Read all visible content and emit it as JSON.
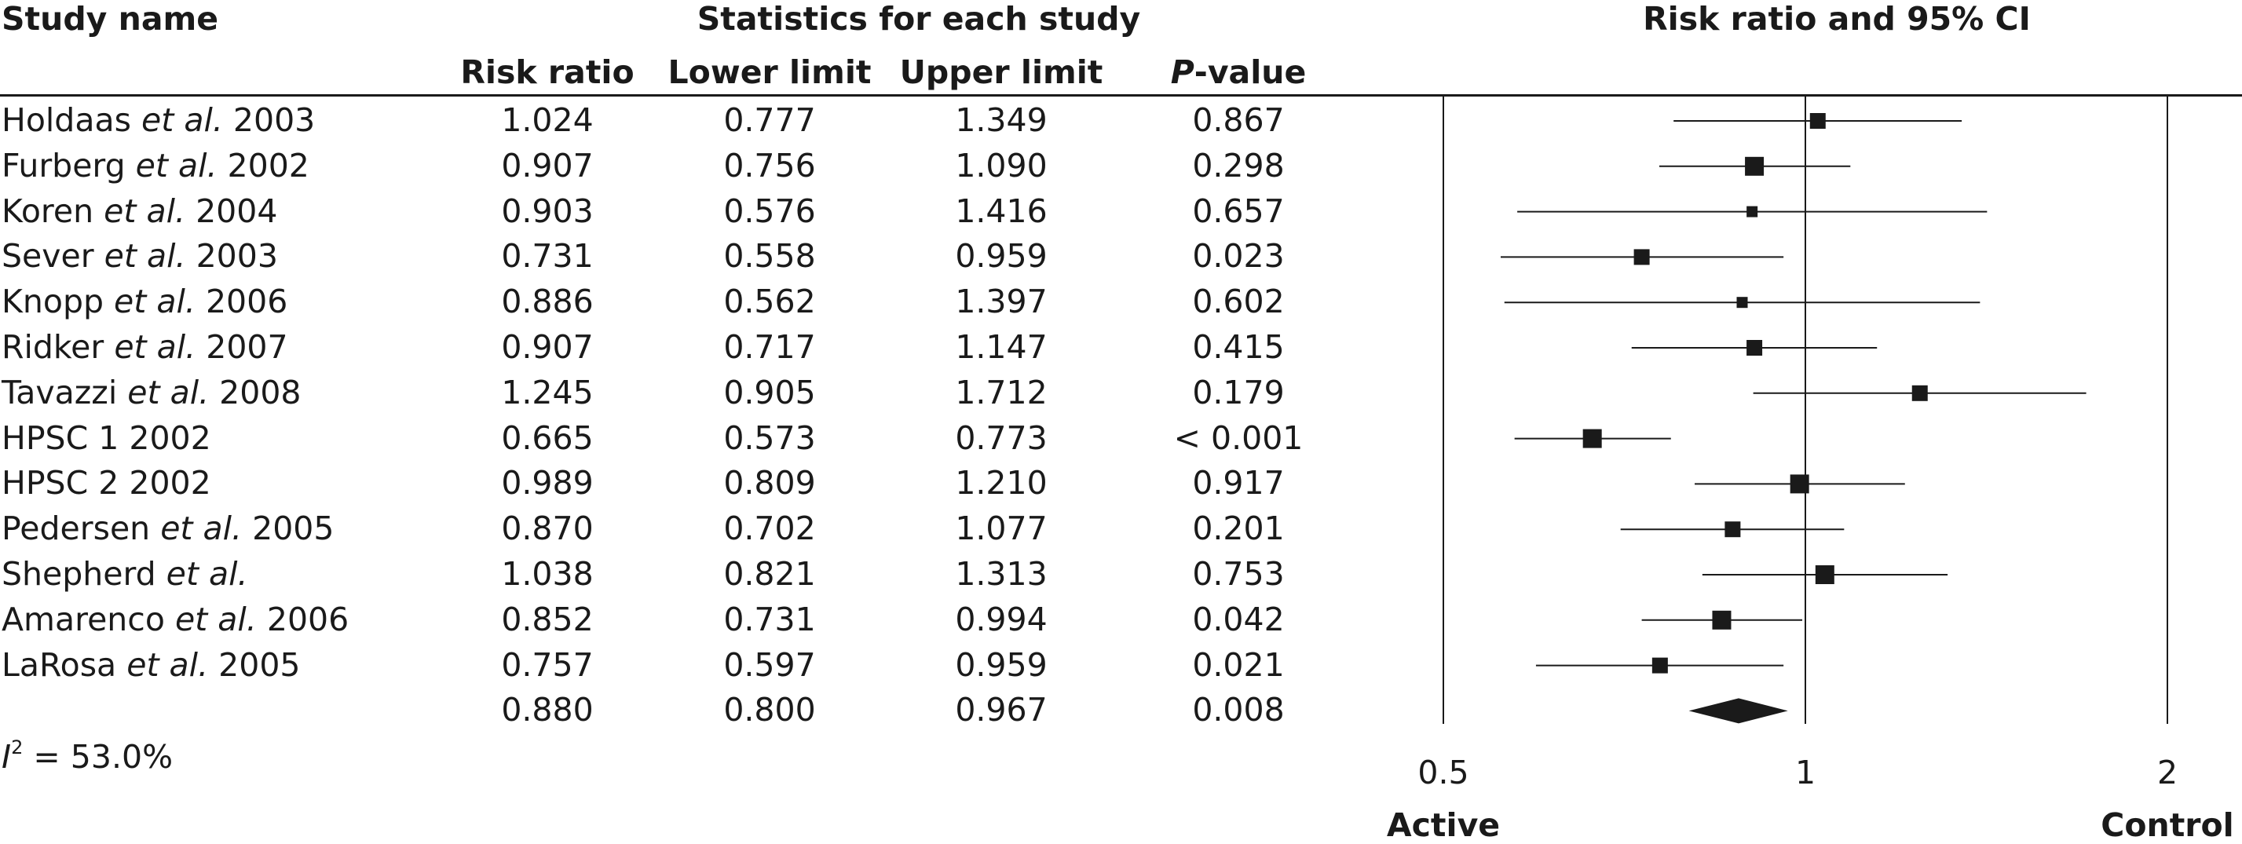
{
  "headers": {
    "study_name": "Study name",
    "statistics": "Statistics for each study",
    "risk_ratio": "Risk ratio",
    "lower_limit": "Lower limit",
    "upper_limit": "Upper limit",
    "p_value_italic": "P",
    "p_value_rest": "-value",
    "plot_title": "Risk ratio and 95% CI"
  },
  "heterogeneity": {
    "label_italic": "I",
    "label_sup": "2",
    "text": " = 53.0%"
  },
  "axis": {
    "active": "Active",
    "control": "Control"
  },
  "chart_data": {
    "type": "forest",
    "title": "Risk ratio and 95% CI",
    "x_scale": "log",
    "xlim": [
      0.5,
      2
    ],
    "ticks": [
      "0.5",
      "1",
      "2"
    ],
    "reference_line": 1,
    "xlabel_left": "Active",
    "xlabel_right": "Control",
    "studies": [
      {
        "name": "Holdaas",
        "etal": " et al.",
        "year": " 2003",
        "rr": "1.024",
        "lower": "0.777",
        "upper": "1.349",
        "p": "0.867",
        "weight": "medium"
      },
      {
        "name": "Furberg",
        "etal": " et al.",
        "year": " 2002",
        "rr": "0.907",
        "lower": "0.756",
        "upper": "1.090",
        "p": "0.298",
        "weight": "large"
      },
      {
        "name": "Koren",
        "etal": " et al.",
        "year": " 2004",
        "rr": "0.903",
        "lower": "0.576",
        "upper": "1.416",
        "p": "0.657",
        "weight": "small"
      },
      {
        "name": "Sever",
        "etal": " et al.",
        "year": " 2003",
        "rr": "0.731",
        "lower": "0.558",
        "upper": "0.959",
        "p": "0.023",
        "weight": "medium"
      },
      {
        "name": "Knopp",
        "etal": " et al.",
        "year": " 2006",
        "rr": "0.886",
        "lower": "0.562",
        "upper": "1.397",
        "p": "0.602",
        "weight": "small"
      },
      {
        "name": "Ridker",
        "etal": " et al.",
        "year": " 2007",
        "rr": "0.907",
        "lower": "0.717",
        "upper": "1.147",
        "p": "0.415",
        "weight": "medium"
      },
      {
        "name": "Tavazzi",
        "etal": " et al.",
        "year": " 2008",
        "rr": "1.245",
        "lower": "0.905",
        "upper": "1.712",
        "p": "0.179",
        "weight": "medium"
      },
      {
        "name": "HPSC 1 2002",
        "etal": "",
        "year": "",
        "rr": "0.665",
        "lower": "0.573",
        "upper": "0.773",
        "p": "< 0.001",
        "weight": "large"
      },
      {
        "name": "HPSC 2 2002",
        "etal": "",
        "year": "",
        "rr": "0.989",
        "lower": "0.809",
        "upper": "1.210",
        "p": "0.917",
        "weight": "large"
      },
      {
        "name": "Pedersen",
        "etal": " et al.",
        "year": " 2005",
        "rr": "0.870",
        "lower": "0.702",
        "upper": "1.077",
        "p": "0.201",
        "weight": "medium"
      },
      {
        "name": "Shepherd",
        "etal": " et al.",
        "year": "",
        "rr": "1.038",
        "lower": "0.821",
        "upper": "1.313",
        "p": "0.753",
        "weight": "large"
      },
      {
        "name": "Amarenco",
        "etal": " et al.",
        "year": " 2006",
        "rr": "0.852",
        "lower": "0.731",
        "upper": "0.994",
        "p": "0.042",
        "weight": "large"
      },
      {
        "name": "LaRosa",
        "etal": " et al.",
        "year": " 2005",
        "rr": "0.757",
        "lower": "0.597",
        "upper": "0.959",
        "p": "0.021",
        "weight": "medium"
      }
    ],
    "summary": {
      "rr": "0.880",
      "lower": "0.800",
      "upper": "0.967",
      "p": "0.008"
    }
  }
}
